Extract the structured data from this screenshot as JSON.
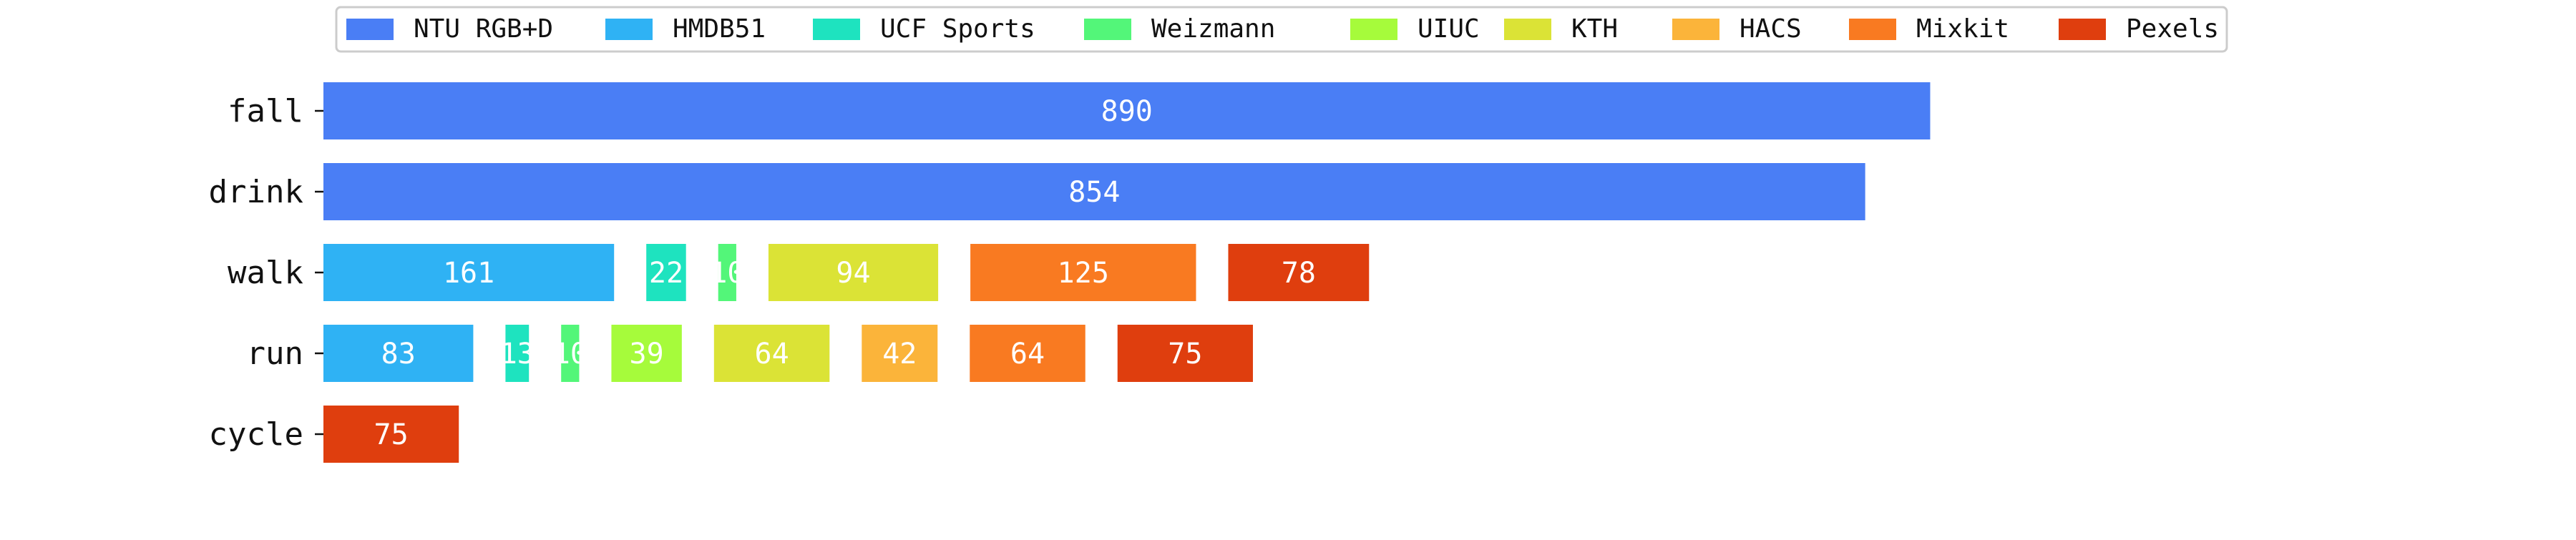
{
  "chart_data": {
    "type": "bar",
    "orientation": "horizontal",
    "layout": "grouped-gapped",
    "categories": [
      "fall",
      "drink",
      "walk",
      "run",
      "cycle"
    ],
    "legend_placement": "top-center",
    "grid": false,
    "series": [
      {
        "name": "NTU RGB+D",
        "color": "#4a7ef5",
        "values": [
          890,
          854,
          0,
          0,
          0
        ]
      },
      {
        "name": "HMDB51",
        "color": "#2fb2f4",
        "values": [
          0,
          0,
          161,
          83,
          0
        ]
      },
      {
        "name": "UCF Sports",
        "color": "#1ee3bf",
        "values": [
          0,
          0,
          22,
          13,
          0
        ]
      },
      {
        "name": "Weizmann",
        "color": "#53f679",
        "values": [
          0,
          0,
          10,
          10,
          0
        ]
      },
      {
        "name": "UIUC",
        "color": "#a6fb3b",
        "values": [
          0,
          0,
          0,
          39,
          0
        ]
      },
      {
        "name": "KTH",
        "color": "#dbe336",
        "values": [
          0,
          0,
          94,
          64,
          0
        ]
      },
      {
        "name": "HACS",
        "color": "#fbb43a",
        "values": [
          0,
          0,
          0,
          42,
          0
        ]
      },
      {
        "name": "Mixkit",
        "color": "#f97a21",
        "values": [
          0,
          0,
          125,
          64,
          0
        ]
      },
      {
        "name": "Pexels",
        "color": "#df3e0e",
        "values": [
          0,
          0,
          78,
          75,
          75
        ]
      }
    ]
  }
}
